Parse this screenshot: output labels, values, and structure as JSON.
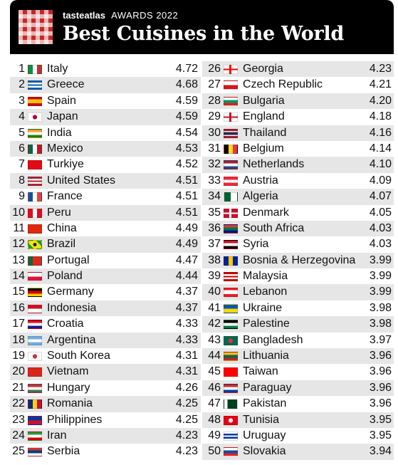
{
  "header": {
    "brand": "tasteatlas",
    "awards": "AWARDS 2022",
    "title": "Best Cuisines in the World"
  },
  "rankings": [
    {
      "rank": "1",
      "country": "Italy",
      "score": "4.72",
      "flag": "italy-flag-icon",
      "colors": [
        "#009246",
        "#ffffff",
        "#ce2b37"
      ],
      "dir": "v"
    },
    {
      "rank": "2",
      "country": "Greece",
      "score": "4.68",
      "flag": "greece-flag-icon",
      "colors": [
        "#0d5eaf",
        "#ffffff",
        "#0d5eaf",
        "#ffffff",
        "#0d5eaf"
      ],
      "dir": "h"
    },
    {
      "rank": "3",
      "country": "Spain",
      "score": "4.59",
      "flag": "spain-flag-icon",
      "colors": [
        "#c60b1e",
        "#ffc400",
        "#ffc400",
        "#c60b1e"
      ],
      "dir": "h"
    },
    {
      "rank": "4",
      "country": "Japan",
      "score": "4.59",
      "flag": "japan-flag-icon",
      "colors": [
        "#ffffff",
        "#bc002d"
      ],
      "dir": "circle"
    },
    {
      "rank": "5",
      "country": "India",
      "score": "4.54",
      "flag": "india-flag-icon",
      "colors": [
        "#ff9933",
        "#ffffff",
        "#138808"
      ],
      "dir": "h"
    },
    {
      "rank": "6",
      "country": "Mexico",
      "score": "4.53",
      "flag": "mexico-flag-icon",
      "colors": [
        "#006847",
        "#ffffff",
        "#ce1126"
      ],
      "dir": "v"
    },
    {
      "rank": "7",
      "country": "Turkiye",
      "score": "4.52",
      "flag": "turkiye-flag-icon",
      "colors": [
        "#e30a17"
      ],
      "dir": "h"
    },
    {
      "rank": "8",
      "country": "United States",
      "score": "4.51",
      "flag": "united-states-flag-icon",
      "colors": [
        "#b22234",
        "#ffffff",
        "#b22234",
        "#ffffff",
        "#b22234"
      ],
      "dir": "h"
    },
    {
      "rank": "9",
      "country": "France",
      "score": "4.51",
      "flag": "france-flag-icon",
      "colors": [
        "#0055a4",
        "#ffffff",
        "#ef4135"
      ],
      "dir": "v"
    },
    {
      "rank": "10",
      "country": "Peru",
      "score": "4.51",
      "flag": "peru-flag-icon",
      "colors": [
        "#d91023",
        "#ffffff",
        "#d91023"
      ],
      "dir": "v"
    },
    {
      "rank": "11",
      "country": "China",
      "score": "4.49",
      "flag": "china-flag-icon",
      "colors": [
        "#de2910"
      ],
      "dir": "h"
    },
    {
      "rank": "12",
      "country": "Brazil",
      "score": "4.49",
      "flag": "brazil-flag-icon",
      "colors": [
        "#009c3b",
        "#ffdf00",
        "#002776"
      ],
      "dir": "diamond"
    },
    {
      "rank": "13",
      "country": "Portugal",
      "score": "4.47",
      "flag": "portugal-flag-icon",
      "colors": [
        "#046a38",
        "#da291c",
        "#da291c"
      ],
      "dir": "v"
    },
    {
      "rank": "14",
      "country": "Poland",
      "score": "4.44",
      "flag": "poland-flag-icon",
      "colors": [
        "#ffffff",
        "#dc143c"
      ],
      "dir": "h"
    },
    {
      "rank": "15",
      "country": "Germany",
      "score": "4.37",
      "flag": "germany-flag-icon",
      "colors": [
        "#000000",
        "#dd0000",
        "#ffce00"
      ],
      "dir": "h"
    },
    {
      "rank": "16",
      "country": "Indonesia",
      "score": "4.37",
      "flag": "indonesia-flag-icon",
      "colors": [
        "#ce1126",
        "#ffffff"
      ],
      "dir": "h"
    },
    {
      "rank": "17",
      "country": "Croatia",
      "score": "4.33",
      "flag": "croatia-flag-icon",
      "colors": [
        "#ff0000",
        "#ffffff",
        "#171796"
      ],
      "dir": "h"
    },
    {
      "rank": "18",
      "country": "Argentina",
      "score": "4.33",
      "flag": "argentina-flag-icon",
      "colors": [
        "#74acdf",
        "#ffffff",
        "#74acdf"
      ],
      "dir": "h"
    },
    {
      "rank": "19",
      "country": "South Korea",
      "score": "4.31",
      "flag": "south-korea-flag-icon",
      "colors": [
        "#ffffff",
        "#cd2e3a"
      ],
      "dir": "circle"
    },
    {
      "rank": "20",
      "country": "Vietnam",
      "score": "4.31",
      "flag": "vietnam-flag-icon",
      "colors": [
        "#da251d"
      ],
      "dir": "h"
    },
    {
      "rank": "21",
      "country": "Hungary",
      "score": "4.26",
      "flag": "hungary-flag-icon",
      "colors": [
        "#cd2a3e",
        "#ffffff",
        "#436f4d"
      ],
      "dir": "h"
    },
    {
      "rank": "22",
      "country": "Romania",
      "score": "4.25",
      "flag": "romania-flag-icon",
      "colors": [
        "#002b7f",
        "#fcd116",
        "#ce1126"
      ],
      "dir": "v"
    },
    {
      "rank": "23",
      "country": "Philippines",
      "score": "4.25",
      "flag": "philippines-flag-icon",
      "colors": [
        "#0038a8",
        "#ce1126"
      ],
      "dir": "h"
    },
    {
      "rank": "24",
      "country": "Iran",
      "score": "4.23",
      "flag": "iran-flag-icon",
      "colors": [
        "#239f40",
        "#ffffff",
        "#da0000"
      ],
      "dir": "h"
    },
    {
      "rank": "25",
      "country": "Serbia",
      "score": "4.23",
      "flag": "serbia-flag-icon",
      "colors": [
        "#c6363c",
        "#0c4076",
        "#ffffff"
      ],
      "dir": "h"
    },
    {
      "rank": "26",
      "country": "Georgia",
      "score": "4.23",
      "flag": "georgia-flag-icon",
      "colors": [
        "#ffffff",
        "#ff0000"
      ],
      "dir": "cross"
    },
    {
      "rank": "27",
      "country": "Czech Republic",
      "score": "4.21",
      "flag": "czech-republic-flag-icon",
      "colors": [
        "#ffffff",
        "#d7141a"
      ],
      "dir": "h"
    },
    {
      "rank": "28",
      "country": "Bulgaria",
      "score": "4.20",
      "flag": "bulgaria-flag-icon",
      "colors": [
        "#ffffff",
        "#00966e",
        "#d62612"
      ],
      "dir": "h"
    },
    {
      "rank": "29",
      "country": "England",
      "score": "4.18",
      "flag": "england-flag-icon",
      "colors": [
        "#ffffff",
        "#ce1124"
      ],
      "dir": "cross"
    },
    {
      "rank": "30",
      "country": "Thailand",
      "score": "4.16",
      "flag": "thailand-flag-icon",
      "colors": [
        "#a51931",
        "#f4f5f8",
        "#2d2a4a",
        "#2d2a4a",
        "#f4f5f8",
        "#a51931"
      ],
      "dir": "h"
    },
    {
      "rank": "31",
      "country": "Belgium",
      "score": "4.14",
      "flag": "belgium-flag-icon",
      "colors": [
        "#000000",
        "#fdda24",
        "#ef3340"
      ],
      "dir": "v"
    },
    {
      "rank": "32",
      "country": "Netherlands",
      "score": "4.10",
      "flag": "netherlands-flag-icon",
      "colors": [
        "#ae1c28",
        "#ffffff",
        "#21468b"
      ],
      "dir": "h"
    },
    {
      "rank": "33",
      "country": "Austria",
      "score": "4.09",
      "flag": "austria-flag-icon",
      "colors": [
        "#ed2939",
        "#ffffff",
        "#ed2939"
      ],
      "dir": "h"
    },
    {
      "rank": "34",
      "country": "Algeria",
      "score": "4.07",
      "flag": "algeria-flag-icon",
      "colors": [
        "#006233",
        "#ffffff"
      ],
      "dir": "v"
    },
    {
      "rank": "35",
      "country": "Denmark",
      "score": "4.05",
      "flag": "denmark-flag-icon",
      "colors": [
        "#c8102e",
        "#ffffff"
      ],
      "dir": "cross"
    },
    {
      "rank": "36",
      "country": "South Africa",
      "score": "4.03",
      "flag": "south-africa-flag-icon",
      "colors": [
        "#e03c31",
        "#007749",
        "#001489"
      ],
      "dir": "h"
    },
    {
      "rank": "37",
      "country": "Syria",
      "score": "4.03",
      "flag": "syria-flag-icon",
      "colors": [
        "#ce1126",
        "#ffffff",
        "#000000"
      ],
      "dir": "h"
    },
    {
      "rank": "38",
      "country": "Bosnia & Herzegovina",
      "score": "3.99",
      "flag": "bosnia-herzegovina-flag-icon",
      "colors": [
        "#002395",
        "#fecb00",
        "#002395"
      ],
      "dir": "v"
    },
    {
      "rank": "39",
      "country": "Malaysia",
      "score": "3.99",
      "flag": "malaysia-flag-icon",
      "colors": [
        "#cc0001",
        "#ffffff",
        "#cc0001",
        "#ffffff",
        "#cc0001"
      ],
      "dir": "h"
    },
    {
      "rank": "40",
      "country": "Lebanon",
      "score": "3.99",
      "flag": "lebanon-flag-icon",
      "colors": [
        "#ed1c24",
        "#ffffff",
        "#ffffff",
        "#ed1c24"
      ],
      "dir": "h"
    },
    {
      "rank": "41",
      "country": "Ukraine",
      "score": "3.98",
      "flag": "ukraine-flag-icon",
      "colors": [
        "#0057b7",
        "#ffd700"
      ],
      "dir": "h"
    },
    {
      "rank": "42",
      "country": "Palestine",
      "score": "3.98",
      "flag": "palestine-flag-icon",
      "colors": [
        "#000000",
        "#ffffff",
        "#007a3d"
      ],
      "dir": "h"
    },
    {
      "rank": "43",
      "country": "Bangladesh",
      "score": "3.97",
      "flag": "bangladesh-flag-icon",
      "colors": [
        "#006a4e",
        "#f42a41"
      ],
      "dir": "circle"
    },
    {
      "rank": "44",
      "country": "Lithuania",
      "score": "3.96",
      "flag": "lithuania-flag-icon",
      "colors": [
        "#fdb913",
        "#006a44",
        "#c1272d"
      ],
      "dir": "h"
    },
    {
      "rank": "45",
      "country": "Taiwan",
      "score": "3.96",
      "flag": "taiwan-flag-icon",
      "colors": [
        "#fe0000"
      ],
      "dir": "h"
    },
    {
      "rank": "46",
      "country": "Paraguay",
      "score": "3.96",
      "flag": "paraguay-flag-icon",
      "colors": [
        "#d52b1e",
        "#ffffff",
        "#0038a8"
      ],
      "dir": "h"
    },
    {
      "rank": "47",
      "country": "Pakistan",
      "score": "3.96",
      "flag": "pakistan-flag-icon",
      "colors": [
        "#ffffff",
        "#01411c",
        "#01411c",
        "#01411c"
      ],
      "dir": "v"
    },
    {
      "rank": "48",
      "country": "Tunisia",
      "score": "3.95",
      "flag": "tunisia-flag-icon",
      "colors": [
        "#e70013",
        "#ffffff"
      ],
      "dir": "circle"
    },
    {
      "rank": "49",
      "country": "Uruguay",
      "score": "3.95",
      "flag": "uruguay-flag-icon",
      "colors": [
        "#ffffff",
        "#0038a8",
        "#ffffff",
        "#0038a8",
        "#ffffff"
      ],
      "dir": "h"
    },
    {
      "rank": "50",
      "country": "Slovakia",
      "score": "3.94",
      "flag": "slovakia-flag-icon",
      "colors": [
        "#ffffff",
        "#0b4ea2",
        "#ee1c25"
      ],
      "dir": "h"
    }
  ]
}
